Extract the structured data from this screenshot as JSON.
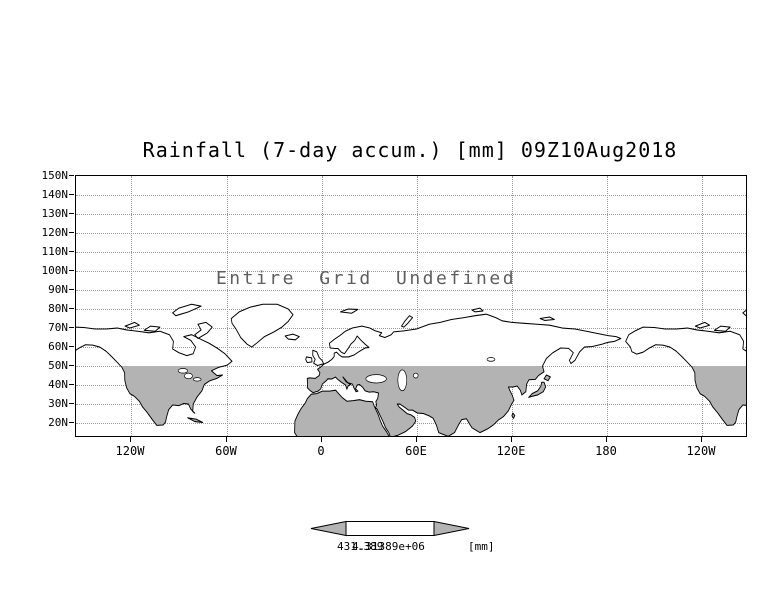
{
  "title": "Rainfall (7-day accum.) [mm] 09Z10Aug2018",
  "annotation": "Entire Grid Undefined",
  "y_axis": {
    "ticks": [
      "150N",
      "140N",
      "130N",
      "120N",
      "110N",
      "100N",
      "90N",
      "80N",
      "70N",
      "60N",
      "50N",
      "40N",
      "30N",
      "20N"
    ]
  },
  "x_axis": {
    "ticks": [
      "120W",
      "60W",
      "0",
      "60E",
      "120E",
      "180",
      "120W"
    ]
  },
  "colorbar": {
    "min_label": "431.389",
    "max_label": "4.31389e+06",
    "unit": "[mm]"
  },
  "colors": {
    "land_shade_gray": "#b3b3b3",
    "grid_gray": "#9a9a9a",
    "annotation_gray": "#5f5f5f",
    "coastline": "#000000"
  },
  "chart_data": {
    "type": "heatmap",
    "title": "Rainfall (7-day accum.) [mm] 09Z10Aug2018",
    "x_tick_labels": [
      "120W",
      "60W",
      "0",
      "60E",
      "120E",
      "180",
      "120W"
    ],
    "y_tick_labels": [
      "150N",
      "140N",
      "130N",
      "120N",
      "110N",
      "100N",
      "90N",
      "80N",
      "70N",
      "60N",
      "50N",
      "40N",
      "30N",
      "20N"
    ],
    "values": [],
    "annotation": "Entire Grid Undefined",
    "colorbar_labels": [
      "431.389",
      "4.31389e+06"
    ],
    "unit": "mm",
    "note": "Entire grid undefined - no rainfall values are plotted; base map shown with gray land shading south of 50N"
  }
}
